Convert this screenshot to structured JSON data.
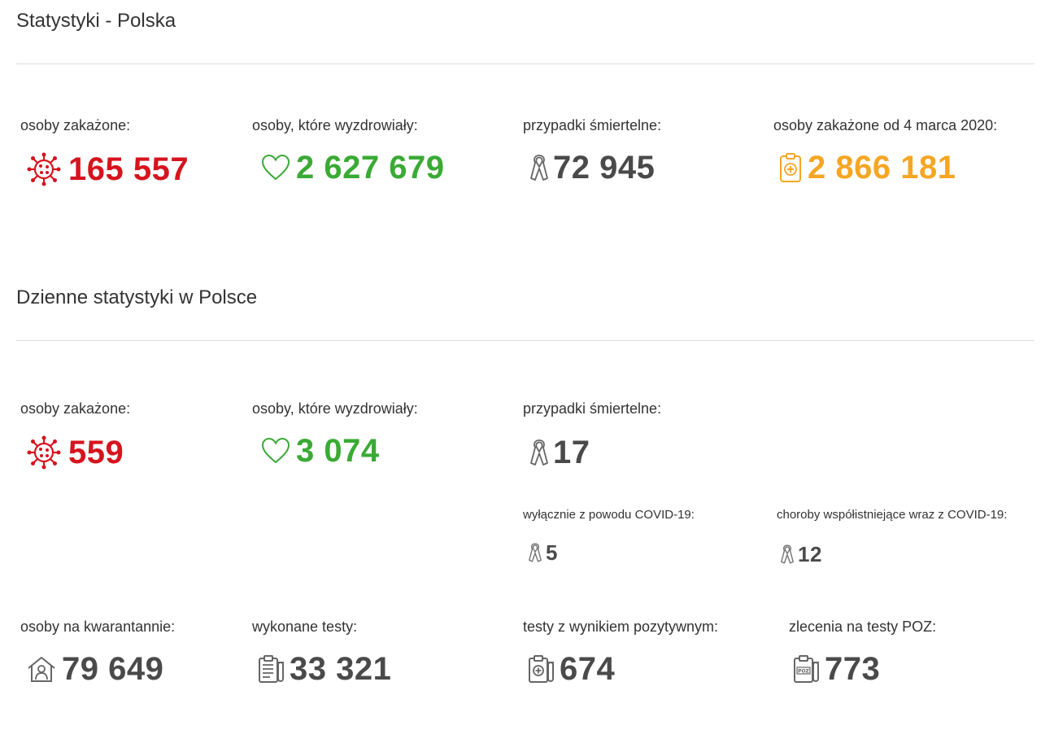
{
  "section1": {
    "title": "Statystyki - Polska",
    "infected": {
      "label": "osoby zakażone:",
      "value": "165 557",
      "icon": "virus-icon"
    },
    "recovered": {
      "label": "osoby, które wyzdrowiały:",
      "value": "2 627 679",
      "icon": "heart-icon"
    },
    "deaths": {
      "label": "przypadki śmiertelne:",
      "value": "72 945",
      "icon": "ribbon-icon"
    },
    "total_infected": {
      "label": "osoby zakażone od 4 marca 2020:",
      "value": "2 866 181",
      "icon": "clipboard-cross-icon"
    }
  },
  "section2": {
    "title": "Dzienne statystyki w Polsce",
    "infected": {
      "label": "osoby zakażone:",
      "value": "559",
      "icon": "virus-icon"
    },
    "recovered": {
      "label": "osoby, które wyzdrowiały:",
      "value": "3 074",
      "icon": "heart-icon"
    },
    "deaths": {
      "label": "przypadki śmiertelne:",
      "value": "17",
      "icon": "ribbon-icon"
    },
    "deaths_covid_only": {
      "label": "wyłącznie z powodu COVID-19:",
      "value": "5",
      "icon": "ribbon-icon"
    },
    "deaths_comorbid": {
      "label": "choroby współistniejące wraz z COVID-19:",
      "value": "12",
      "icon": "ribbon-icon"
    },
    "quarantine": {
      "label": "osoby na kwarantannie:",
      "value": "79 649",
      "icon": "house-person-icon"
    },
    "tests": {
      "label": "wykonane testy:",
      "value": "33 321",
      "icon": "clipboard-test-tube-icon"
    },
    "positive_tests": {
      "label": "testy z wynikiem pozytywnym:",
      "value": "674",
      "icon": "clipboard-plus-test-tube-icon"
    },
    "poz_orders": {
      "label": "zlecenia na testy POZ:",
      "value": "773",
      "icon": "clipboard-poz-icon"
    }
  },
  "colors": {
    "infected": "#d6141e",
    "recovered": "#3aaa35",
    "deaths": "#4a4a4a",
    "total": "#f5a623"
  }
}
